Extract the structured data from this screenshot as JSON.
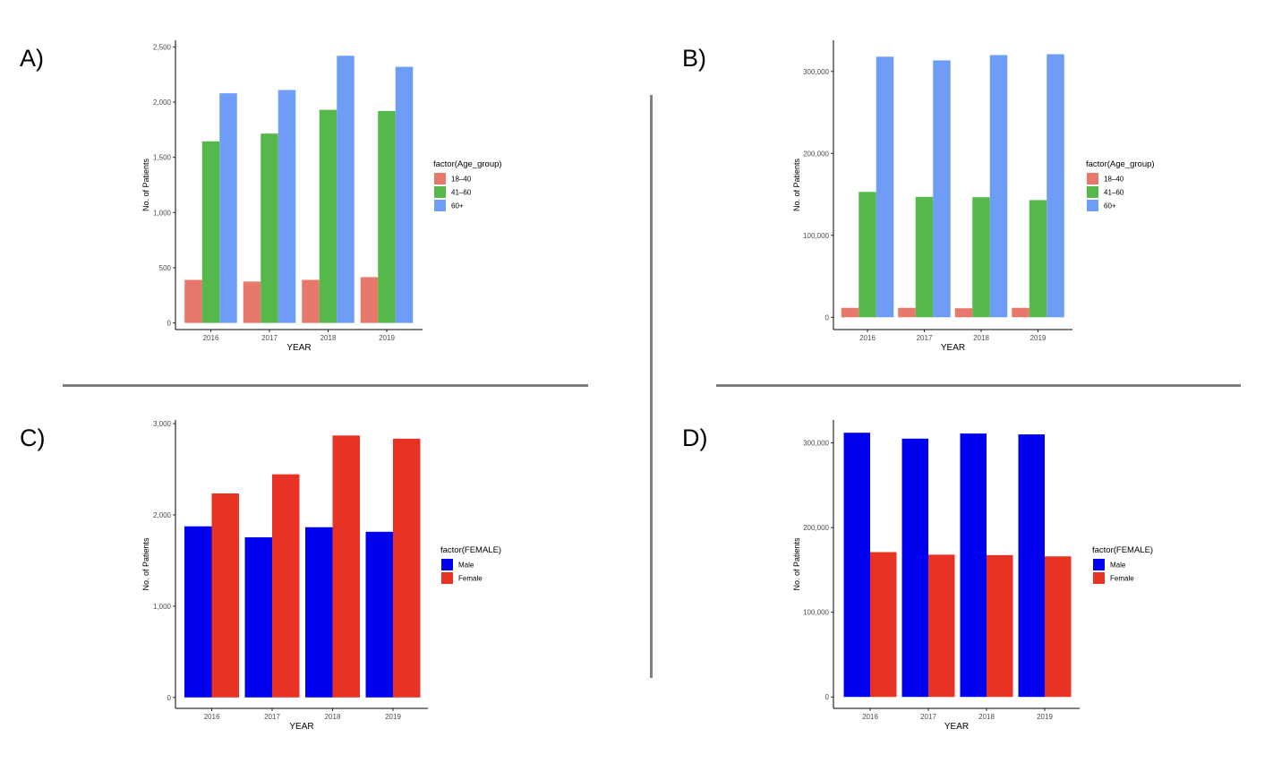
{
  "panels": [
    "A)",
    "B)",
    "C)",
    "D)"
  ],
  "chart_data": [
    {
      "panel": "A)",
      "type": "bar",
      "xlabel": "YEAR",
      "ylabel": "No. of Patients",
      "legend_title": "factor(Age_group)",
      "legend_position": "right",
      "categories": [
        "2016",
        "2017",
        "2018",
        "2019"
      ],
      "ylim": [
        -60,
        2560
      ],
      "yticks": [
        0,
        500,
        1000,
        1500,
        2000,
        2500
      ],
      "ytick_labels": [
        "0",
        "500",
        "1,000",
        "1,500",
        "2,000",
        "2,500"
      ],
      "series": [
        {
          "name": "18–40",
          "color": "#e8776c",
          "values": [
            390,
            375,
            390,
            415
          ]
        },
        {
          "name": "41–60",
          "color": "#56b84a",
          "values": [
            1645,
            1715,
            1930,
            1920
          ]
        },
        {
          "name": "60+",
          "color": "#6e9cf7",
          "values": [
            2080,
            2110,
            2420,
            2320
          ]
        }
      ]
    },
    {
      "panel": "B)",
      "type": "bar",
      "xlabel": "YEAR",
      "ylabel": "No. of Patients",
      "legend_title": "factor(Age_group)",
      "legend_position": "right",
      "categories": [
        "2016",
        "2017",
        "2018",
        "2019"
      ],
      "ylim": [
        -15000,
        338000
      ],
      "yticks": [
        0,
        100000,
        200000,
        300000
      ],
      "ytick_labels": [
        "0",
        "100,000",
        "200,000",
        "300,000"
      ],
      "series": [
        {
          "name": "18–40",
          "color": "#e8776c",
          "values": [
            11500,
            11500,
            11000,
            11500
          ]
        },
        {
          "name": "41–60",
          "color": "#56b84a",
          "values": [
            153000,
            147000,
            146500,
            143000
          ]
        },
        {
          "name": "60+",
          "color": "#6e9cf7",
          "values": [
            318000,
            313500,
            320000,
            321000
          ]
        }
      ]
    },
    {
      "panel": "C)",
      "type": "bar",
      "xlabel": "YEAR",
      "ylabel": "No. of Patients",
      "legend_title": "factor(FEMALE)",
      "legend_position": "right",
      "categories": [
        "2016",
        "2017",
        "2018",
        "2019"
      ],
      "ylim": [
        -120,
        3040
      ],
      "yticks": [
        0,
        1000,
        2000,
        3000
      ],
      "ytick_labels": [
        "0",
        "1,000",
        "2,000",
        "3,000"
      ],
      "series": [
        {
          "name": "Male",
          "color": "#0000f0",
          "values": [
            1875,
            1755,
            1865,
            1815
          ]
        },
        {
          "name": "Female",
          "color": "#e83223",
          "values": [
            2235,
            2445,
            2870,
            2835
          ]
        }
      ]
    },
    {
      "panel": "D)",
      "type": "bar",
      "xlabel": "YEAR",
      "ylabel": "No. of Patients",
      "legend_title": "factor(FEMALE)",
      "legend_position": "right",
      "categories": [
        "2016",
        "2017",
        "2018",
        "2019"
      ],
      "ylim": [
        -13500,
        327000
      ],
      "yticks": [
        0,
        100000,
        200000,
        300000
      ],
      "ytick_labels": [
        "0",
        "100,000",
        "200,000",
        "300,000"
      ],
      "series": [
        {
          "name": "Male",
          "color": "#0000f0",
          "values": [
            312000,
            305000,
            311000,
            310000
          ]
        },
        {
          "name": "Female",
          "color": "#e83223",
          "values": [
            171000,
            168000,
            167500,
            166000
          ]
        }
      ]
    }
  ]
}
